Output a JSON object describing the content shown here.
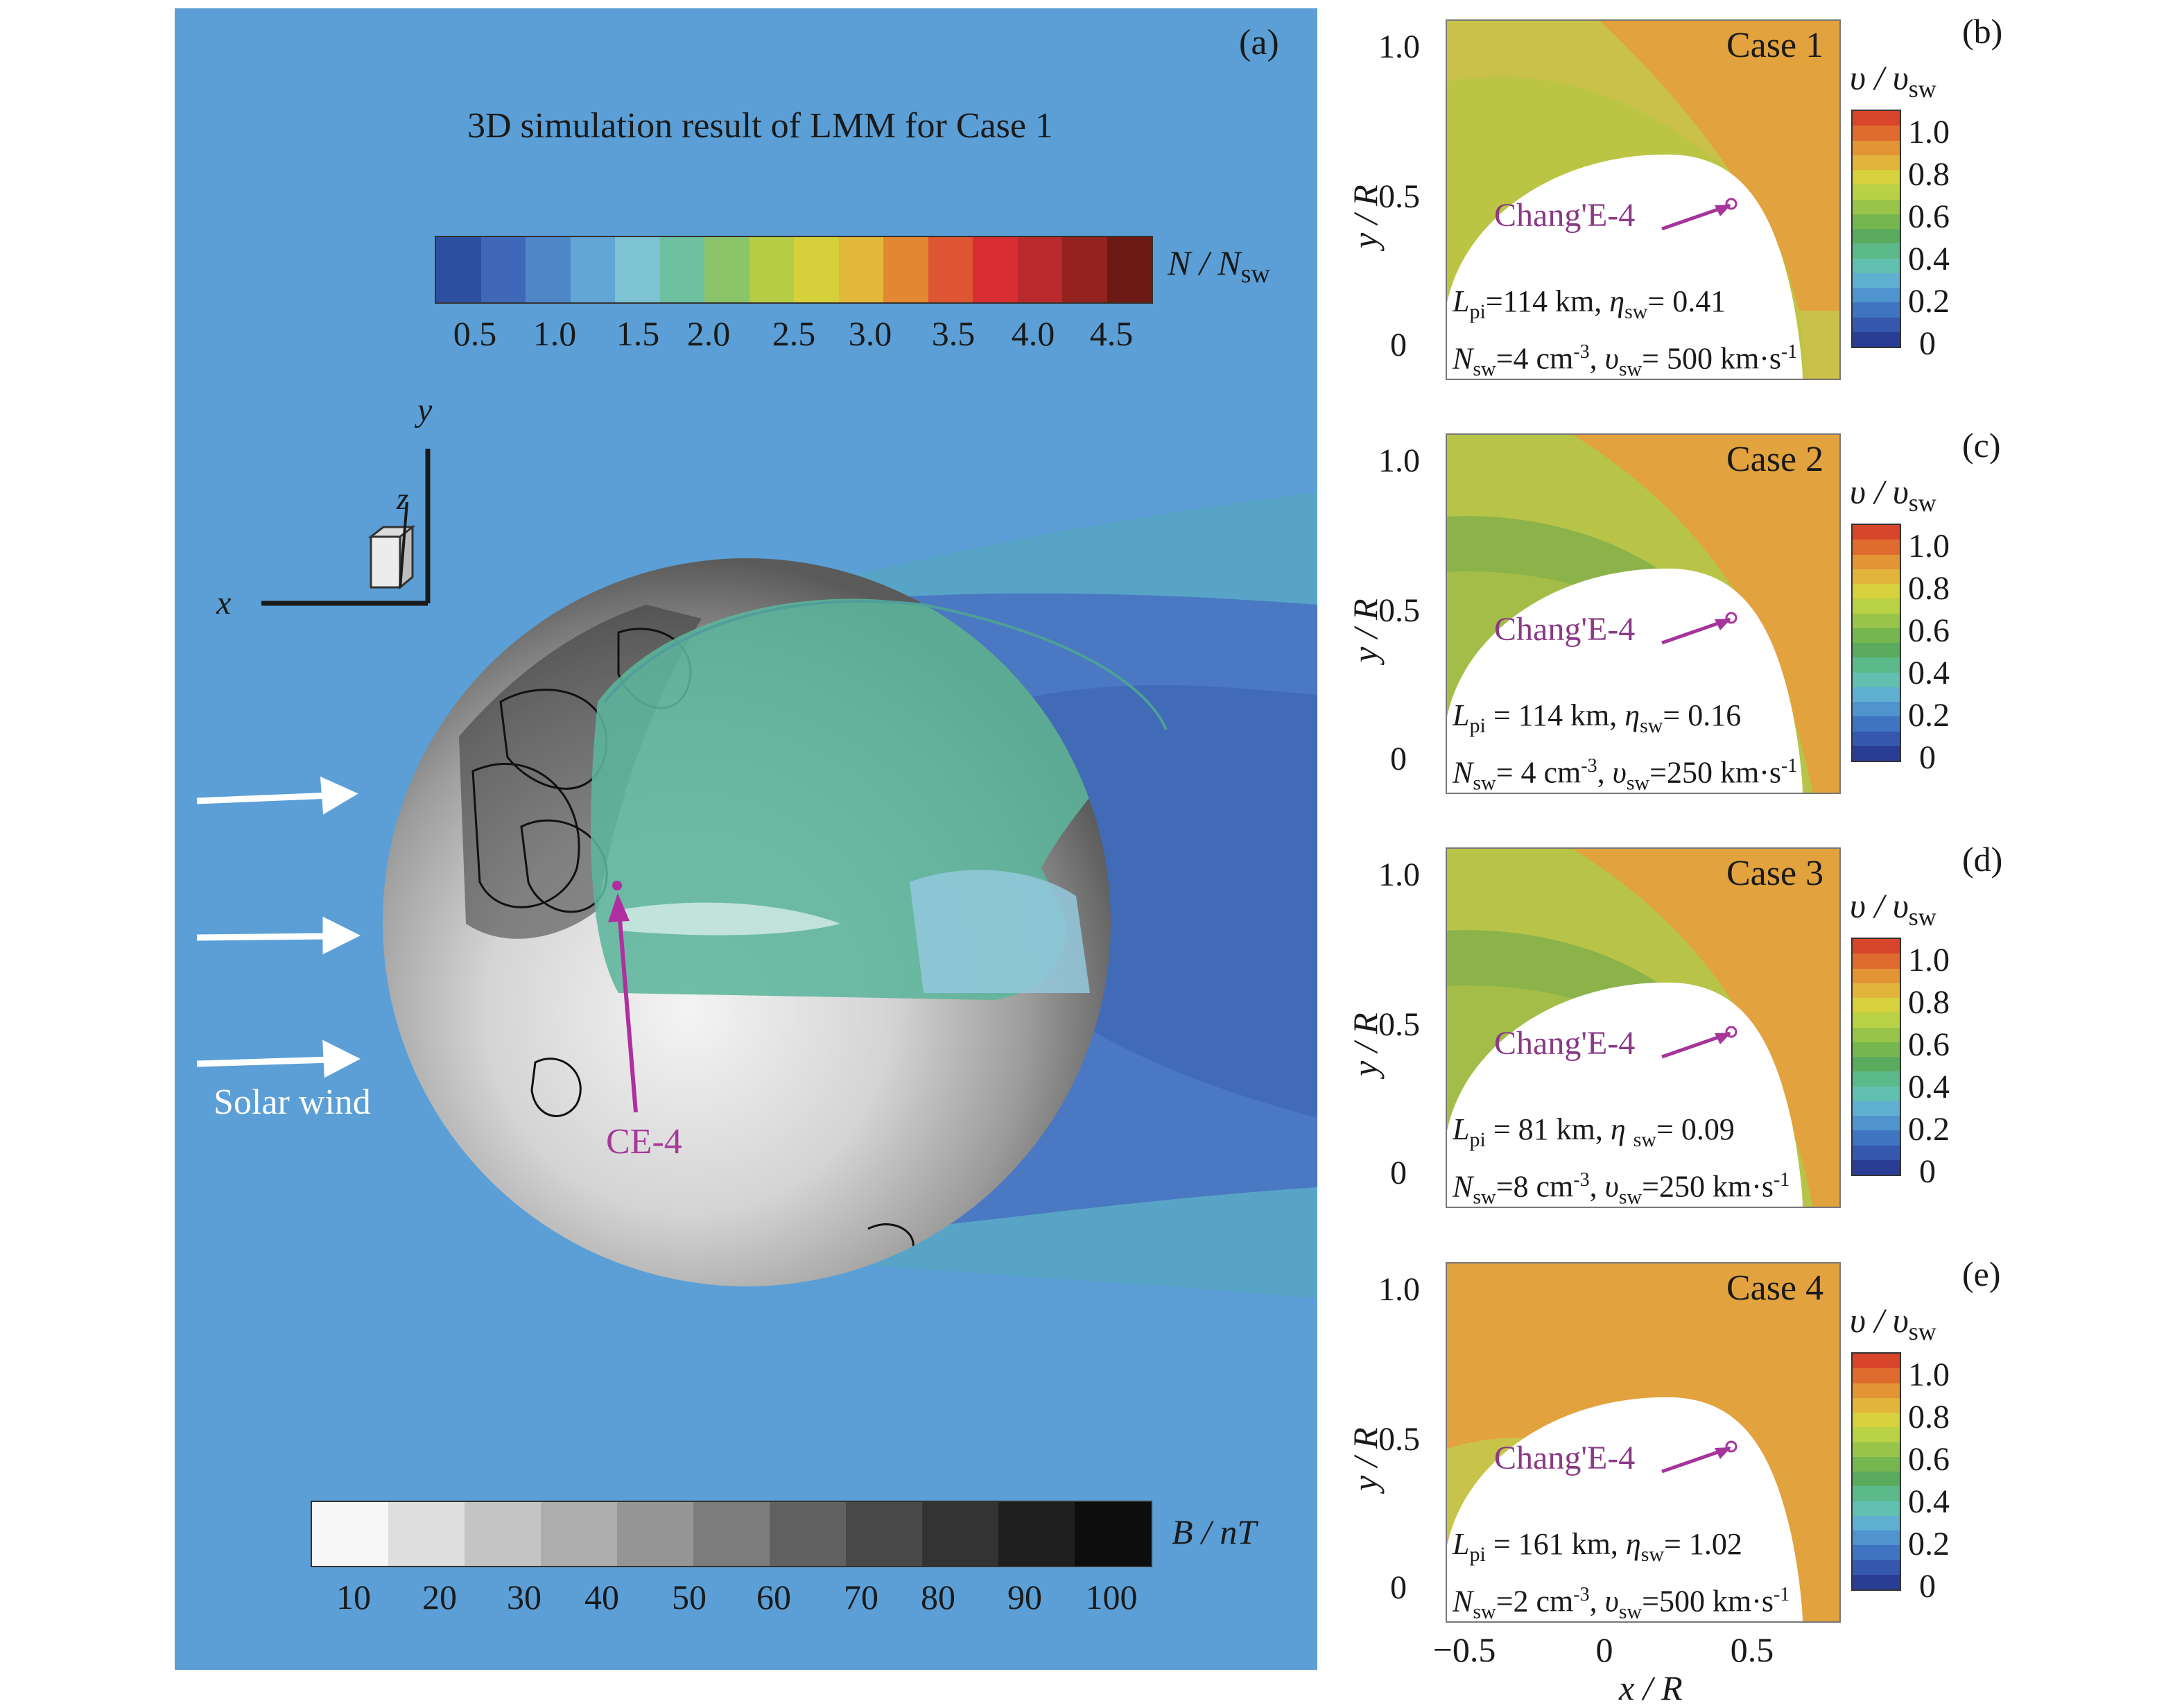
{
  "main": {
    "panel_letter": "(a)",
    "title": "3D simulation result of LMM for Case 1",
    "density_colorbar": {
      "label": "N / N",
      "label_sub": "sw",
      "ticks": [
        "0.5",
        "1.0",
        "1.5",
        "2.0",
        "2.5",
        "3.0",
        "3.5",
        "4.0",
        "4.5"
      ],
      "colors": [
        "#2d4fa0",
        "#3f69b8",
        "#4e86c8",
        "#62a6d6",
        "#7ec3d4",
        "#6dc0a0",
        "#8cc46a",
        "#b6cc45",
        "#d6d03a",
        "#e3b83a",
        "#e28832",
        "#dd5532",
        "#d72d33",
        "#b82a2c",
        "#94231f",
        "#6e1a14"
      ]
    },
    "axes_labels": {
      "x": "x",
      "y": "y",
      "z": "z"
    },
    "solar_wind_label": "Solar wind",
    "ce4_label": "CE-4",
    "b_colorbar": {
      "label": "B / nT",
      "ticks": [
        "10",
        "20",
        "30",
        "40",
        "50",
        "60",
        "70",
        "80",
        "90",
        "100"
      ],
      "colors": [
        "#f7f7f7",
        "#dedede",
        "#c4c4c4",
        "#adadad",
        "#959595",
        "#7c7c7c",
        "#616161",
        "#494949",
        "#333333",
        "#1f1f1f",
        "#0d0d0d"
      ]
    }
  },
  "side_panels": [
    {
      "letter": "(b)",
      "case": "Case 1",
      "ce4_label": "Chang'E-4",
      "param_line1": "L_pi=114 km, η_sw= 0.41",
      "param_line2": "N_sw=4 cm⁻³, v_sw= 500 km·s⁻¹",
      "p1a": "L",
      "p1a_sub": "pi",
      "p1b": "=114 km, ",
      "p1c": "η",
      "p1c_sub": "sw",
      "p1d": "= 0.41",
      "p2a": "N",
      "p2a_sub": "sw",
      "p2b": "=4 cm",
      "p2b_sup": "-3",
      "p2c": ", ",
      "p2d": "υ",
      "p2d_sub": "sw",
      "p2e": "= 500 km·s",
      "p2e_sup": "-1"
    },
    {
      "letter": "(c)",
      "case": "Case 2",
      "ce4_label": "Chang'E-4",
      "p1a": "L",
      "p1a_sub": "pi",
      "p1b": " = 114 km, ",
      "p1c": "η",
      "p1c_sub": "sw",
      "p1d": "= 0.16",
      "p2a": "N",
      "p2a_sub": "sw",
      "p2b": "= 4 cm",
      "p2b_sup": "-3",
      "p2c": ", ",
      "p2d": "υ",
      "p2d_sub": "sw",
      "p2e": "=250 km·s",
      "p2e_sup": "-1"
    },
    {
      "letter": "(d)",
      "case": "Case 3",
      "ce4_label": "Chang'E-4",
      "p1a": "L",
      "p1a_sub": "pi",
      "p1b": " = 81 km, ",
      "p1c": "η ",
      "p1c_sub": "sw",
      "p1d": "= 0.09",
      "p2a": "N",
      "p2a_sub": "sw",
      "p2b": "=8 cm",
      "p2b_sup": "-3",
      "p2c": ", ",
      "p2d": "υ",
      "p2d_sub": "sw",
      "p2e": "=250 km·s",
      "p2e_sup": "-1"
    },
    {
      "letter": "(e)",
      "case": "Case 4",
      "ce4_label": "Chang'E-4",
      "p1a": "L",
      "p1a_sub": "pi",
      "p1b": " = 161 km, ",
      "p1c": "η",
      "p1c_sub": "sw",
      "p1d": "= 1.02",
      "p2a": "N",
      "p2a_sub": "sw",
      "p2b": "=2 cm",
      "p2b_sup": "-3",
      "p2c": ", ",
      "p2d": "υ",
      "p2d_sub": "sw",
      "p2e": "=500 km·s",
      "p2e_sup": "-1"
    }
  ],
  "side_common": {
    "y_ticks": [
      "1.0",
      "0.5",
      "0"
    ],
    "x_ticks": [
      "−0.5",
      "0",
      "0.5"
    ],
    "y_label": "y / R",
    "x_label": "x / R",
    "cb_label": "υ / υ",
    "cb_label_sub": "sw",
    "cb_ticks": [
      "1.0",
      "0.8",
      "0.6",
      "0.4",
      "0.2",
      "0"
    ],
    "cb_colors": [
      "#2a3d95",
      "#3557ad",
      "#3f74c1",
      "#4f93cf",
      "#5fb0d0",
      "#62c0b0",
      "#5cb98a",
      "#5aab5d",
      "#76b64f",
      "#98c549",
      "#b9d145",
      "#d7d13e",
      "#e2b43c",
      "#e39434",
      "#df6c2e",
      "#d9452b"
    ]
  }
}
